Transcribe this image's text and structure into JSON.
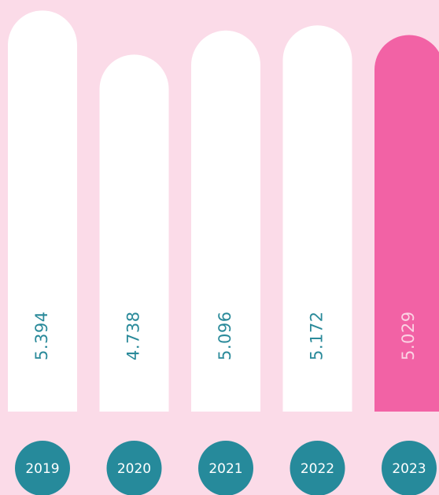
{
  "chart_data": {
    "type": "bar",
    "categories": [
      "2019",
      "2020",
      "2021",
      "2022",
      "2023"
    ],
    "values": [
      5.394,
      4.738,
      5.096,
      5.172,
      5.029
    ],
    "colors": [
      "#ffffff",
      "#ffffff",
      "#ffffff",
      "#ffffff",
      "#f262a5"
    ],
    "label_colors": [
      "#2a8a9a",
      "#2a8a9a",
      "#2a8a9a",
      "#2a8a9a",
      "#fbd3e4"
    ],
    "category_color": "#268a9b",
    "ylim": [
      -0.57,
      5.55
    ]
  }
}
